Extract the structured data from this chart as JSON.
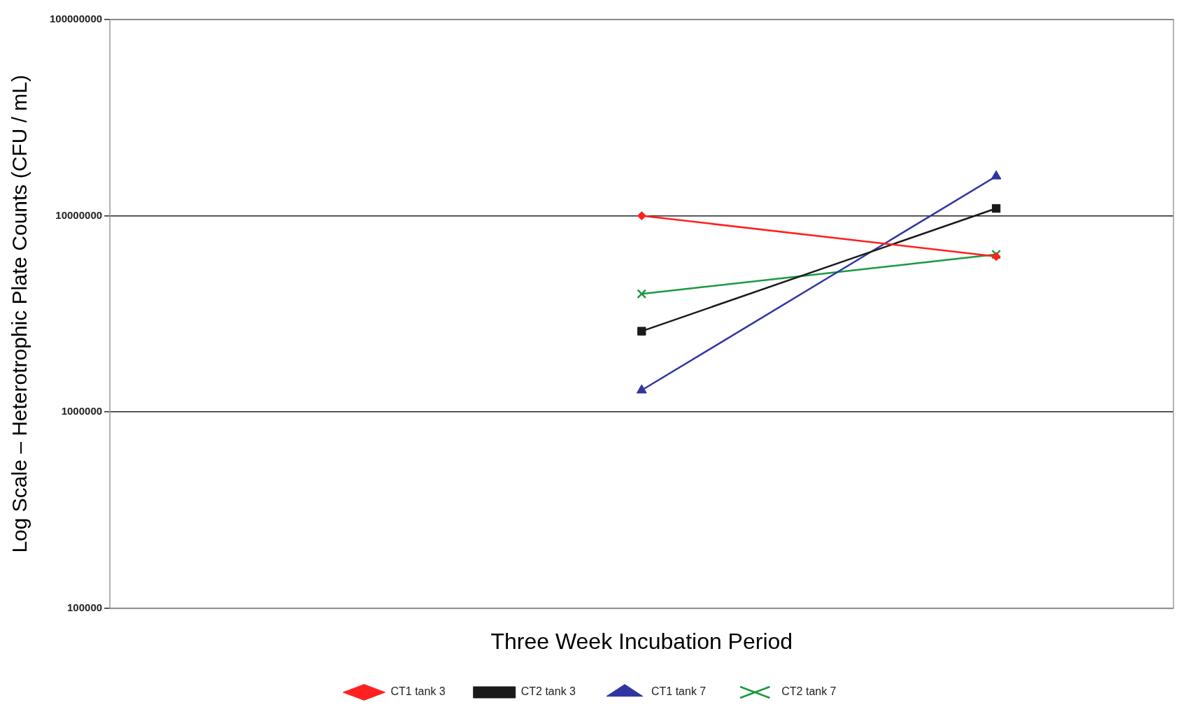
{
  "chart_data": {
    "type": "line",
    "xlabel": "Three Week Incubation Period",
    "ylabel": "Log Scale – Heterotrophic Plate Counts (CFU / mL)",
    "categories": [
      null,
      null,
      null
    ],
    "series": [
      {
        "name": "CT1 tank 3",
        "color": "#ff2020",
        "marker": "diamond",
        "values": [
          null,
          10000000,
          6200000
        ]
      },
      {
        "name": "CT2 tank 3",
        "color": "#1a1a1a",
        "marker": "square",
        "values": [
          null,
          2580000,
          10900000
        ]
      },
      {
        "name": "CT1 tank 7",
        "color": "#3035a0",
        "marker": "triangle",
        "values": [
          null,
          1290000,
          15900000
        ]
      },
      {
        "name": "CT2 tank 7",
        "color": "#1a9a40",
        "marker": "cross",
        "values": [
          null,
          4000000,
          6350000
        ]
      }
    ],
    "log": "y",
    "ylim": [
      100000,
      100000000
    ],
    "yticks": [
      100000,
      1000000,
      10000000,
      100000000
    ],
    "grid": "y",
    "legend": "bottom",
    "tick_labels": "y"
  }
}
